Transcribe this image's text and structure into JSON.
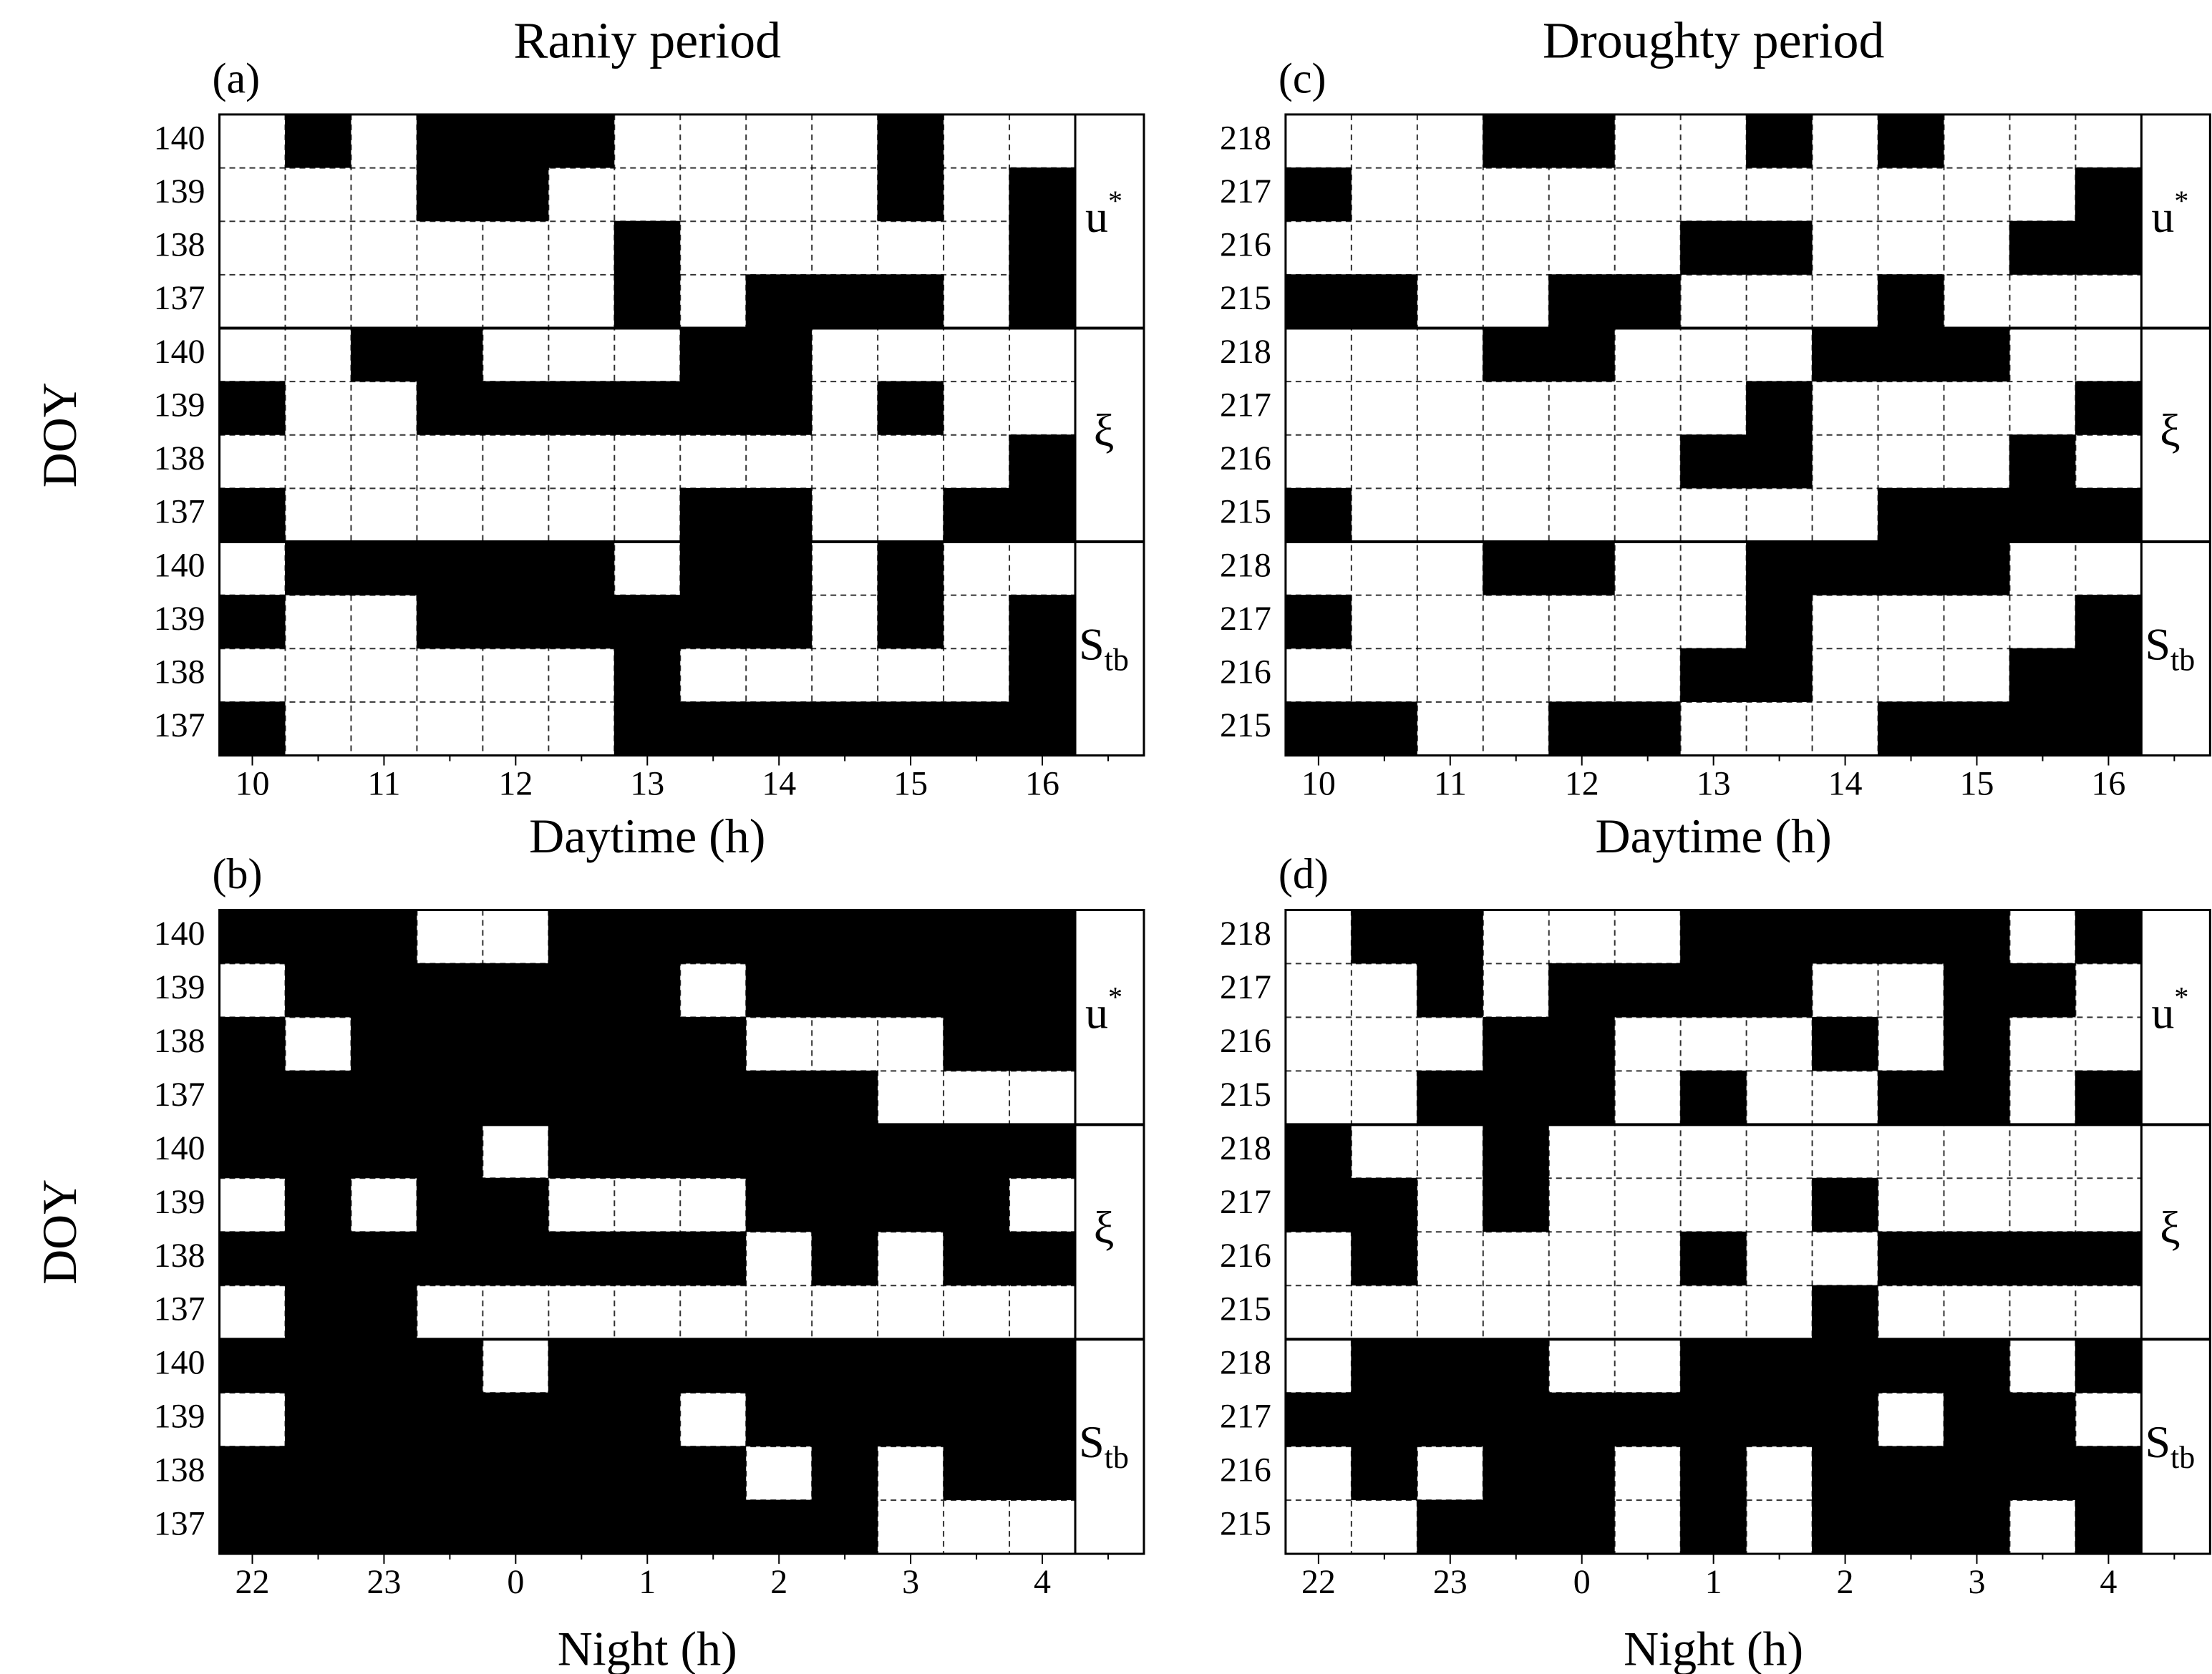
{
  "panels": [
    {
      "label": "(a)",
      "title": "Raniy period",
      "x_label": "Daytime (h)",
      "y_label": "DOY",
      "x_ticks": [
        "10",
        "11",
        "12",
        "13",
        "14",
        "15",
        "16"
      ],
      "groups": [
        {
          "label": {
            "text": "u",
            "sup": "*"
          },
          "rows": [
            "140",
            "139",
            "138",
            "137"
          ]
        },
        {
          "label": {
            "text": "ξ"
          },
          "rows": [
            "140",
            "139",
            "138",
            "137"
          ]
        },
        {
          "label": {
            "text": "S",
            "sub": "tb"
          },
          "rows": [
            "140",
            "139",
            "138",
            "137"
          ]
        }
      ],
      "cells": [
        [
          0,
          1,
          0,
          1,
          1,
          1,
          0,
          0,
          0,
          0,
          1,
          0,
          0
        ],
        [
          0,
          0,
          0,
          1,
          1,
          0,
          0,
          0,
          0,
          0,
          1,
          0,
          1
        ],
        [
          0,
          0,
          0,
          0,
          0,
          0,
          1,
          0,
          0,
          0,
          0,
          0,
          1
        ],
        [
          0,
          0,
          0,
          0,
          0,
          0,
          1,
          0,
          1,
          1,
          1,
          0,
          1
        ],
        [
          0,
          0,
          1,
          1,
          0,
          0,
          0,
          1,
          1,
          0,
          0,
          0,
          0
        ],
        [
          1,
          0,
          0,
          1,
          1,
          1,
          1,
          1,
          1,
          0,
          1,
          0,
          0
        ],
        [
          0,
          0,
          0,
          0,
          0,
          0,
          0,
          0,
          0,
          0,
          0,
          0,
          1
        ],
        [
          1,
          0,
          0,
          0,
          0,
          0,
          0,
          1,
          1,
          0,
          0,
          1,
          1
        ],
        [
          0,
          1,
          1,
          1,
          1,
          1,
          0,
          1,
          1,
          0,
          1,
          0,
          0
        ],
        [
          1,
          0,
          0,
          1,
          1,
          1,
          1,
          1,
          1,
          0,
          1,
          0,
          1
        ],
        [
          0,
          0,
          0,
          0,
          0,
          0,
          1,
          0,
          0,
          0,
          0,
          0,
          1
        ],
        [
          1,
          0,
          0,
          0,
          0,
          0,
          1,
          1,
          1,
          1,
          1,
          1,
          1
        ]
      ]
    },
    {
      "label": "(b)",
      "x_label": "Night (h)",
      "y_label": "DOY",
      "x_ticks": [
        "22",
        "23",
        "0",
        "1",
        "2",
        "3",
        "4"
      ],
      "groups": [
        {
          "label": {
            "text": "u",
            "sup": "*"
          },
          "rows": [
            "140",
            "139",
            "138",
            "137"
          ]
        },
        {
          "label": {
            "text": "ξ"
          },
          "rows": [
            "140",
            "139",
            "138",
            "137"
          ]
        },
        {
          "label": {
            "text": "S",
            "sub": "tb"
          },
          "rows": [
            "140",
            "139",
            "138",
            "137"
          ]
        }
      ],
      "cells": [
        [
          1,
          1,
          1,
          0,
          0,
          1,
          1,
          1,
          1,
          1,
          1,
          1,
          1
        ],
        [
          0,
          1,
          1,
          1,
          1,
          1,
          1,
          0,
          1,
          1,
          1,
          1,
          1
        ],
        [
          1,
          0,
          1,
          1,
          1,
          1,
          1,
          1,
          0,
          0,
          0,
          1,
          1
        ],
        [
          1,
          1,
          1,
          1,
          1,
          1,
          1,
          1,
          1,
          1,
          0,
          0,
          0
        ],
        [
          1,
          1,
          1,
          1,
          0,
          1,
          1,
          1,
          1,
          1,
          1,
          1,
          1
        ],
        [
          0,
          1,
          0,
          1,
          1,
          0,
          0,
          0,
          1,
          1,
          1,
          1,
          0
        ],
        [
          1,
          1,
          1,
          1,
          1,
          1,
          1,
          1,
          0,
          1,
          0,
          1,
          1
        ],
        [
          0,
          1,
          1,
          0,
          0,
          0,
          0,
          0,
          0,
          0,
          0,
          0,
          0
        ],
        [
          1,
          1,
          1,
          1,
          0,
          1,
          1,
          1,
          1,
          1,
          1,
          1,
          1
        ],
        [
          0,
          1,
          1,
          1,
          1,
          1,
          1,
          0,
          1,
          1,
          1,
          1,
          1
        ],
        [
          1,
          1,
          1,
          1,
          1,
          1,
          1,
          1,
          0,
          1,
          0,
          1,
          1
        ],
        [
          1,
          1,
          1,
          1,
          1,
          1,
          1,
          1,
          1,
          1,
          0,
          0,
          0
        ]
      ]
    },
    {
      "label": "(c)",
      "title": "Droughty period",
      "x_label": "Daytime (h)",
      "x_ticks": [
        "10",
        "11",
        "12",
        "13",
        "14",
        "15",
        "16"
      ],
      "groups": [
        {
          "label": {
            "text": "u",
            "sup": "*"
          },
          "rows": [
            "218",
            "217",
            "216",
            "215"
          ]
        },
        {
          "label": {
            "text": "ξ"
          },
          "rows": [
            "218",
            "217",
            "216",
            "215"
          ]
        },
        {
          "label": {
            "text": "S",
            "sub": "tb"
          },
          "rows": [
            "218",
            "217",
            "216",
            "215"
          ]
        }
      ],
      "cells": [
        [
          0,
          0,
          0,
          1,
          1,
          0,
          0,
          1,
          0,
          1,
          0,
          0,
          0
        ],
        [
          1,
          0,
          0,
          0,
          0,
          0,
          0,
          0,
          0,
          0,
          0,
          0,
          1
        ],
        [
          0,
          0,
          0,
          0,
          0,
          0,
          1,
          1,
          0,
          0,
          0,
          1,
          1
        ],
        [
          1,
          1,
          0,
          0,
          1,
          1,
          0,
          0,
          0,
          1,
          0,
          0,
          0
        ],
        [
          0,
          0,
          0,
          1,
          1,
          0,
          0,
          0,
          1,
          1,
          1,
          0,
          0
        ],
        [
          0,
          0,
          0,
          0,
          0,
          0,
          0,
          1,
          0,
          0,
          0,
          0,
          1
        ],
        [
          0,
          0,
          0,
          0,
          0,
          0,
          1,
          1,
          0,
          0,
          0,
          1,
          0
        ],
        [
          1,
          0,
          0,
          0,
          0,
          0,
          0,
          0,
          0,
          1,
          1,
          1,
          1
        ],
        [
          0,
          0,
          0,
          1,
          1,
          0,
          0,
          1,
          1,
          1,
          1,
          0,
          0
        ],
        [
          1,
          0,
          0,
          0,
          0,
          0,
          0,
          1,
          0,
          0,
          0,
          0,
          1
        ],
        [
          0,
          0,
          0,
          0,
          0,
          0,
          1,
          1,
          0,
          0,
          0,
          1,
          1
        ],
        [
          1,
          1,
          0,
          0,
          1,
          1,
          0,
          0,
          0,
          1,
          1,
          1,
          1
        ]
      ]
    },
    {
      "label": "(d)",
      "x_label": "Night (h)",
      "x_ticks": [
        "22",
        "23",
        "0",
        "1",
        "2",
        "3",
        "4"
      ],
      "groups": [
        {
          "label": {
            "text": "u",
            "sup": "*"
          },
          "rows": [
            "218",
            "217",
            "216",
            "215"
          ]
        },
        {
          "label": {
            "text": "ξ"
          },
          "rows": [
            "218",
            "217",
            "216",
            "215"
          ]
        },
        {
          "label": {
            "text": "S",
            "sub": "tb"
          },
          "rows": [
            "218",
            "217",
            "216",
            "215"
          ]
        }
      ],
      "cells": [
        [
          0,
          1,
          1,
          0,
          0,
          0,
          1,
          1,
          1,
          1,
          1,
          0,
          1
        ],
        [
          0,
          0,
          1,
          0,
          1,
          1,
          1,
          1,
          0,
          0,
          1,
          1,
          0
        ],
        [
          0,
          0,
          0,
          1,
          1,
          0,
          0,
          0,
          1,
          0,
          1,
          0,
          0
        ],
        [
          0,
          0,
          1,
          1,
          1,
          0,
          1,
          0,
          0,
          1,
          1,
          0,
          1
        ],
        [
          1,
          0,
          0,
          1,
          0,
          0,
          0,
          0,
          0,
          0,
          0,
          0,
          0
        ],
        [
          1,
          1,
          0,
          1,
          0,
          0,
          0,
          0,
          1,
          0,
          0,
          0,
          0
        ],
        [
          0,
          1,
          0,
          0,
          0,
          0,
          1,
          0,
          0,
          1,
          1,
          1,
          1
        ],
        [
          0,
          0,
          0,
          0,
          0,
          0,
          0,
          0,
          1,
          0,
          0,
          0,
          0
        ],
        [
          0,
          1,
          1,
          1,
          0,
          0,
          1,
          1,
          1,
          1,
          1,
          0,
          1
        ],
        [
          1,
          1,
          1,
          1,
          1,
          1,
          1,
          1,
          1,
          0,
          1,
          1,
          0
        ],
        [
          0,
          1,
          0,
          1,
          1,
          0,
          1,
          0,
          1,
          1,
          1,
          1,
          1
        ],
        [
          0,
          0,
          1,
          1,
          1,
          0,
          1,
          0,
          1,
          1,
          1,
          0,
          1
        ]
      ]
    }
  ]
}
